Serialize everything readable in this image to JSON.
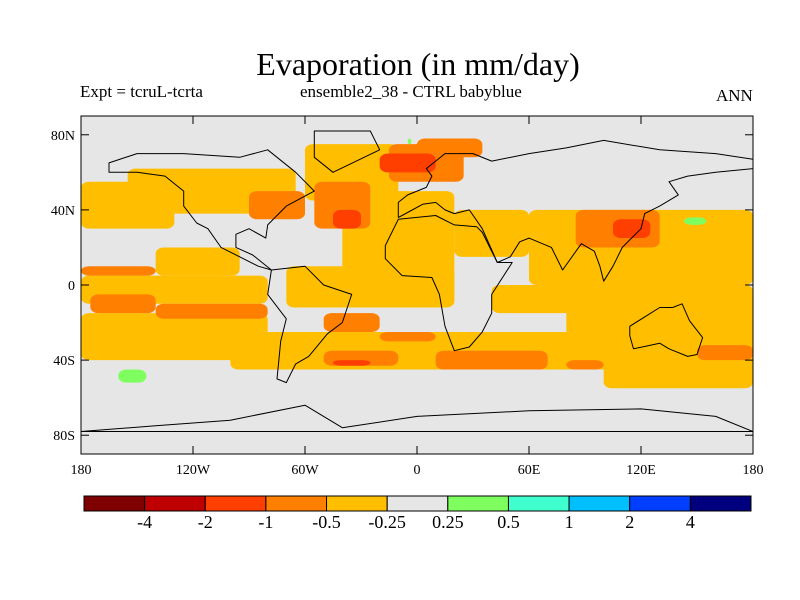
{
  "title": "Evaporation (in mm/day)",
  "subtitle_left": "Expt = tcruL-tcrta",
  "subtitle_center": "ensemble2_38 - CTRL babyblue",
  "subtitle_right": "ANN",
  "map": {
    "lon_range": [
      -180,
      180
    ],
    "lat_range": [
      -90,
      90
    ],
    "background_color": "#e6e6e6",
    "x_ticks": [
      {
        "lon": -180,
        "label": "180"
      },
      {
        "lon": -120,
        "label": "120W"
      },
      {
        "lon": -60,
        "label": "60W"
      },
      {
        "lon": 0,
        "label": "0"
      },
      {
        "lon": 60,
        "label": "60E"
      },
      {
        "lon": 120,
        "label": "120E"
      },
      {
        "lon": 180,
        "label": "180"
      }
    ],
    "y_ticks": [
      {
        "lat": 80,
        "label": "80N"
      },
      {
        "lat": 40,
        "label": "40N"
      },
      {
        "lat": 0,
        "label": "0"
      },
      {
        "lat": -40,
        "label": "40S"
      },
      {
        "lat": -80,
        "label": "80S"
      }
    ],
    "regions": [
      {
        "level": "-0.5 to -0.25",
        "color": "#ffbf00",
        "bounds_deg": [
          [
            -155,
            62,
            -65,
            38
          ],
          [
            -180,
            55,
            -130,
            30
          ],
          [
            -140,
            20,
            -95,
            5
          ],
          [
            -180,
            5,
            -80,
            -10
          ],
          [
            -60,
            75,
            -10,
            45
          ],
          [
            -40,
            50,
            20,
            -10
          ],
          [
            20,
            40,
            60,
            15
          ],
          [
            -70,
            10,
            20,
            -12
          ],
          [
            60,
            40,
            180,
            0
          ],
          [
            40,
            0,
            180,
            -15
          ],
          [
            80,
            -5,
            180,
            -30
          ],
          [
            -180,
            -15,
            -80,
            -40
          ],
          [
            -100,
            -25,
            0,
            -45
          ],
          [
            -10,
            -25,
            180,
            -45
          ],
          [
            100,
            -40,
            180,
            -55
          ]
        ]
      },
      {
        "level": "-1 to -0.5",
        "color": "#ff7f00",
        "bounds_deg": [
          [
            -90,
            50,
            -60,
            35
          ],
          [
            -55,
            55,
            -25,
            30
          ],
          [
            -15,
            75,
            25,
            55
          ],
          [
            0,
            78,
            35,
            68
          ],
          [
            85,
            40,
            130,
            20
          ],
          [
            -180,
            10,
            -140,
            5
          ],
          [
            -175,
            -5,
            -140,
            -15
          ],
          [
            -140,
            -10,
            -80,
            -18
          ],
          [
            -50,
            -15,
            -20,
            -25
          ],
          [
            -20,
            -25,
            10,
            -30
          ],
          [
            -50,
            -35,
            -10,
            -43
          ],
          [
            10,
            -35,
            70,
            -45
          ],
          [
            80,
            -40,
            100,
            -45
          ],
          [
            150,
            -32,
            180,
            -40
          ]
        ]
      },
      {
        "level": "-2 to -1",
        "color": "#ff3f00",
        "bounds_deg": [
          [
            -45,
            40,
            -30,
            30
          ],
          [
            -20,
            70,
            10,
            60
          ],
          [
            105,
            35,
            125,
            25
          ],
          [
            -45,
            -40,
            -25,
            -43
          ]
        ]
      },
      {
        "level": "0.25 to 0.5",
        "color": "#7fff5f",
        "bounds_deg": [
          [
            -160,
            -45,
            -145,
            -52
          ],
          [
            143,
            36,
            155,
            32
          ],
          [
            -5,
            78,
            -3,
            75
          ]
        ]
      }
    ],
    "continents": [
      {
        "name": "North America",
        "outline_deg": [
          [
            -165,
            65
          ],
          [
            -150,
            70
          ],
          [
            -125,
            70
          ],
          [
            -95,
            68
          ],
          [
            -80,
            72
          ],
          [
            -65,
            60
          ],
          [
            -55,
            50
          ],
          [
            -70,
            42
          ],
          [
            -80,
            32
          ],
          [
            -81,
            25
          ],
          [
            -90,
            30
          ],
          [
            -97,
            27
          ],
          [
            -97,
            20
          ],
          [
            -88,
            16
          ],
          [
            -78,
            8
          ],
          [
            -85,
            10
          ],
          [
            -105,
            20
          ],
          [
            -112,
            30
          ],
          [
            -118,
            33
          ],
          [
            -125,
            42
          ],
          [
            -125,
            50
          ],
          [
            -135,
            58
          ],
          [
            -150,
            60
          ],
          [
            -165,
            60
          ]
        ]
      },
      {
        "name": "Greenland",
        "outline_deg": [
          [
            -55,
            82
          ],
          [
            -25,
            82
          ],
          [
            -20,
            72
          ],
          [
            -45,
            60
          ],
          [
            -55,
            68
          ]
        ]
      },
      {
        "name": "South America",
        "outline_deg": [
          [
            -78,
            8
          ],
          [
            -60,
            10
          ],
          [
            -50,
            0
          ],
          [
            -35,
            -5
          ],
          [
            -40,
            -20
          ],
          [
            -48,
            -26
          ],
          [
            -58,
            -38
          ],
          [
            -65,
            -42
          ],
          [
            -70,
            -52
          ],
          [
            -75,
            -50
          ],
          [
            -73,
            -30
          ],
          [
            -70,
            -18
          ],
          [
            -80,
            -5
          ]
        ]
      },
      {
        "name": "Eurasia",
        "outline_deg": [
          [
            -10,
            36
          ],
          [
            -10,
            44
          ],
          [
            -5,
            48
          ],
          [
            5,
            52
          ],
          [
            8,
            58
          ],
          [
            5,
            62
          ],
          [
            15,
            70
          ],
          [
            30,
            70
          ],
          [
            40,
            66
          ],
          [
            60,
            70
          ],
          [
            80,
            73
          ],
          [
            100,
            77
          ],
          [
            130,
            72
          ],
          [
            160,
            70
          ],
          [
            180,
            67
          ],
          [
            180,
            62
          ],
          [
            160,
            60
          ],
          [
            145,
            58
          ],
          [
            135,
            55
          ],
          [
            140,
            48
          ],
          [
            130,
            42
          ],
          [
            122,
            38
          ],
          [
            120,
            30
          ],
          [
            110,
            20
          ],
          [
            105,
            10
          ],
          [
            100,
            2
          ],
          [
            98,
            10
          ],
          [
            95,
            18
          ],
          [
            88,
            22
          ],
          [
            78,
            8
          ],
          [
            72,
            20
          ],
          [
            60,
            25
          ],
          [
            55,
            23
          ],
          [
            50,
            15
          ],
          [
            43,
            12
          ],
          [
            35,
            30
          ],
          [
            28,
            40
          ],
          [
            20,
            38
          ],
          [
            15,
            40
          ],
          [
            10,
            44
          ],
          [
            3,
            43
          ],
          [
            -8,
            37
          ]
        ]
      },
      {
        "name": "Africa",
        "outline_deg": [
          [
            -17,
            21
          ],
          [
            -10,
            35
          ],
          [
            10,
            37
          ],
          [
            20,
            32
          ],
          [
            32,
            31
          ],
          [
            35,
            28
          ],
          [
            43,
            12
          ],
          [
            51,
            12
          ],
          [
            40,
            -5
          ],
          [
            40,
            -15
          ],
          [
            35,
            -25
          ],
          [
            28,
            -33
          ],
          [
            20,
            -35
          ],
          [
            15,
            -22
          ],
          [
            12,
            -5
          ],
          [
            8,
            4
          ],
          [
            -8,
            5
          ],
          [
            -17,
            14
          ]
        ]
      },
      {
        "name": "Australia",
        "outline_deg": [
          [
            114,
            -22
          ],
          [
            122,
            -17
          ],
          [
            130,
            -12
          ],
          [
            137,
            -12
          ],
          [
            142,
            -10
          ],
          [
            146,
            -19
          ],
          [
            153,
            -28
          ],
          [
            150,
            -37
          ],
          [
            145,
            -38
          ],
          [
            135,
            -34
          ],
          [
            130,
            -31
          ],
          [
            116,
            -34
          ],
          [
            114,
            -27
          ]
        ]
      },
      {
        "name": "Antarctica",
        "outline_deg": [
          [
            -180,
            -78
          ],
          [
            -140,
            -75
          ],
          [
            -100,
            -72
          ],
          [
            -60,
            -64
          ],
          [
            -40,
            -76
          ],
          [
            0,
            -70
          ],
          [
            60,
            -67
          ],
          [
            120,
            -66
          ],
          [
            160,
            -70
          ],
          [
            180,
            -78
          ]
        ]
      }
    ]
  },
  "colorbar": {
    "colors": [
      "#7f0000",
      "#bf0000",
      "#ff3f00",
      "#ff7f00",
      "#ffbf00",
      "#e6e6e6",
      "#7fff5f",
      "#3fffcf",
      "#00bfff",
      "#003fff",
      "#00007f"
    ],
    "labels": [
      "-4",
      "-2",
      "-1",
      "-0.5",
      "-0.25",
      "0.25",
      "0.5",
      "1",
      "2",
      "4"
    ]
  }
}
